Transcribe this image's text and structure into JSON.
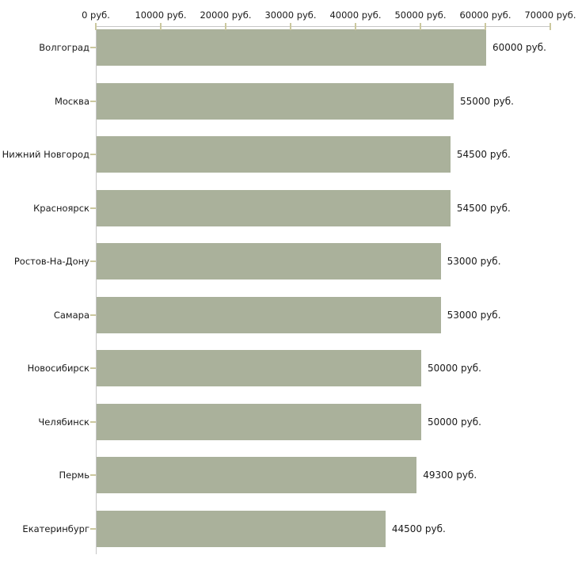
{
  "chart_data": {
    "type": "bar",
    "orientation": "horizontal",
    "title": "",
    "xlabel": "",
    "ylabel": "",
    "grid": false,
    "legend": "none",
    "xlim": [
      0,
      70000
    ],
    "x_ticks": [
      {
        "value": 0,
        "label": "0 руб."
      },
      {
        "value": 10000,
        "label": "10000 руб."
      },
      {
        "value": 20000,
        "label": "20000 руб."
      },
      {
        "value": 30000,
        "label": "30000 руб."
      },
      {
        "value": 40000,
        "label": "40000 руб."
      },
      {
        "value": 50000,
        "label": "50000 руб."
      },
      {
        "value": 60000,
        "label": "60000 руб."
      },
      {
        "value": 70000,
        "label": "70000 руб."
      }
    ],
    "categories": [
      "Волгоград",
      "Москва",
      "Нижний Новгород",
      "Красноярск",
      "Ростов-На-Дону",
      "Самара",
      "Новосибирск",
      "Челябинск",
      "Пермь",
      "Екатеринбург"
    ],
    "values": [
      60000,
      55000,
      54500,
      54500,
      53000,
      53000,
      50000,
      50000,
      49300,
      44500
    ],
    "value_labels": [
      "60000 руб.",
      "55000 руб.",
      "54500 руб.",
      "54500 руб.",
      "53000 руб.",
      "53000 руб.",
      "50000 руб.",
      "50000 руб.",
      "49300 руб.",
      "44500 руб."
    ],
    "colors": {
      "bar": "#aab19b",
      "axis_line": "#c6c6c6",
      "tick": "#cbc89e",
      "text": "#1a1a1a",
      "background": "#ffffff"
    }
  }
}
